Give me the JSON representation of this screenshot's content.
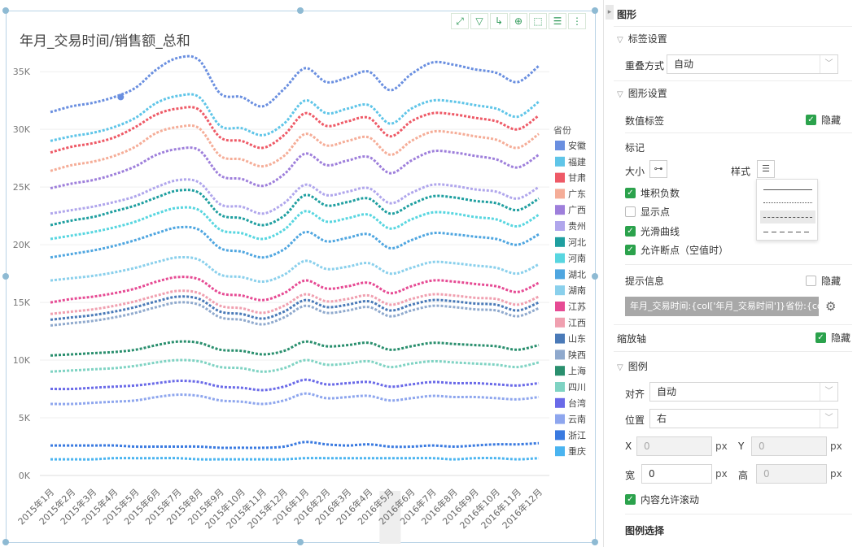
{
  "chart_data": {
    "type": "line",
    "title": "年月_交易时间/销售额_总和",
    "legend_title": "省份",
    "legend_placement": "right",
    "smooth": true,
    "line_style": "dashed",
    "categories": [
      "2015年1月",
      "2015年2月",
      "2015年3月",
      "2015年4月",
      "2015年5月",
      "2015年6月",
      "2015年7月",
      "2015年8月",
      "2015年9月",
      "2015年10月",
      "2015年11月",
      "2015年12月",
      "2016年1月",
      "2016年2月",
      "2016年3月",
      "2016年4月",
      "2016年5月",
      "2016年6月",
      "2016年7月",
      "2016年8月",
      "2016年9月",
      "2016年10月",
      "2016年11月",
      "2016年12月"
    ],
    "ylim": [
      0,
      36000
    ],
    "yticks": [
      "0K",
      "5K",
      "10K",
      "15K",
      "20K",
      "25K",
      "30K",
      "35K"
    ],
    "grid": true,
    "series": [
      {
        "name": "安徽",
        "color": "#6a8fe0",
        "values": [
          31500,
          32000,
          32300,
          32800,
          33600,
          35200,
          36200,
          36000,
          33100,
          32800,
          32000,
          33500,
          35300,
          34100,
          34500,
          35000,
          33400,
          34800,
          35800,
          35600,
          35200,
          34900,
          34100,
          35500
        ]
      },
      {
        "name": "福建",
        "color": "#5fc5e8",
        "values": [
          29000,
          29400,
          29700,
          30200,
          31000,
          32300,
          32900,
          32800,
          30300,
          30100,
          29500,
          30500,
          32500,
          31400,
          31800,
          32100,
          30500,
          31800,
          32500,
          32400,
          32100,
          31800,
          31100,
          32400
        ]
      },
      {
        "name": "甘肃",
        "color": "#ee5a67",
        "values": [
          28000,
          28500,
          28800,
          29300,
          30200,
          31300,
          31800,
          31700,
          29300,
          29000,
          28400,
          29500,
          31400,
          30300,
          30700,
          31000,
          29400,
          30700,
          31400,
          31300,
          31000,
          30700,
          30000,
          31200
        ]
      },
      {
        "name": "广东",
        "color": "#f5ad98",
        "values": [
          26400,
          26900,
          27200,
          27700,
          28500,
          29700,
          30200,
          30100,
          27700,
          27400,
          26800,
          27700,
          29600,
          28600,
          29000,
          29300,
          27800,
          29000,
          29800,
          29700,
          29400,
          29100,
          28400,
          29600
        ]
      },
      {
        "name": "广西",
        "color": "#9e7fdb",
        "values": [
          24900,
          25300,
          25600,
          26100,
          26800,
          27800,
          28300,
          28200,
          26000,
          25700,
          25100,
          26100,
          27900,
          26900,
          27300,
          27600,
          26200,
          27300,
          28100,
          28000,
          27700,
          27400,
          26700,
          27800
        ]
      },
      {
        "name": "贵州",
        "color": "#b0a6ec",
        "values": [
          22700,
          23000,
          23300,
          23700,
          24200,
          25000,
          25600,
          25400,
          23500,
          23300,
          22700,
          23600,
          25200,
          24300,
          24600,
          24900,
          23600,
          24500,
          25200,
          25100,
          24800,
          24600,
          24000,
          25000
        ]
      },
      {
        "name": "河北",
        "color": "#1f9fa0",
        "values": [
          21700,
          22100,
          22400,
          22900,
          23400,
          24100,
          24700,
          24500,
          22600,
          22300,
          21700,
          22500,
          24300,
          23400,
          23700,
          24000,
          22700,
          23500,
          24200,
          24100,
          23800,
          23600,
          23000,
          24000
        ]
      },
      {
        "name": "河南",
        "color": "#58d6e0",
        "values": [
          20500,
          20800,
          21100,
          21500,
          22000,
          22700,
          23200,
          23000,
          21300,
          21000,
          20500,
          21300,
          22900,
          22000,
          22300,
          22600,
          21400,
          22200,
          22800,
          22700,
          22400,
          22200,
          21600,
          22600
        ]
      },
      {
        "name": "湖北",
        "color": "#4fa6e0",
        "values": [
          18900,
          19200,
          19500,
          19900,
          20400,
          21000,
          21500,
          21300,
          19700,
          19400,
          18900,
          19600,
          21100,
          20300,
          20600,
          20900,
          19700,
          20400,
          21000,
          20900,
          20700,
          20500,
          20000,
          20900
        ]
      },
      {
        "name": "湖南",
        "color": "#8ad0ec",
        "values": [
          16900,
          17100,
          17300,
          17600,
          18000,
          18500,
          18900,
          18700,
          17400,
          17200,
          16800,
          17400,
          18600,
          17900,
          18100,
          18400,
          17500,
          18000,
          18500,
          18400,
          18200,
          18000,
          17500,
          18300
        ]
      },
      {
        "name": "江苏",
        "color": "#e64b94",
        "values": [
          15000,
          15300,
          15500,
          15800,
          16200,
          16800,
          17200,
          17000,
          15800,
          15600,
          15200,
          15800,
          16900,
          16200,
          16400,
          16700,
          15800,
          16400,
          16900,
          16800,
          16600,
          16400,
          15900,
          16700
        ]
      },
      {
        "name": "江西",
        "color": "#f0a0b0",
        "values": [
          14000,
          14200,
          14400,
          14700,
          15100,
          15600,
          16000,
          15800,
          14700,
          14500,
          14100,
          14700,
          15700,
          15100,
          15300,
          15600,
          14800,
          15300,
          15700,
          15600,
          15400,
          15300,
          14800,
          15500
        ]
      },
      {
        "name": "山东",
        "color": "#4a7ab8",
        "values": [
          13500,
          13700,
          13900,
          14200,
          14600,
          15100,
          15500,
          15300,
          14200,
          14000,
          13600,
          14200,
          15200,
          14600,
          14800,
          15100,
          14300,
          14800,
          15200,
          15100,
          14900,
          14800,
          14300,
          15000
        ]
      },
      {
        "name": "陕西",
        "color": "#8fa9cd",
        "values": [
          13000,
          13200,
          13400,
          13700,
          14100,
          14600,
          15000,
          14800,
          13700,
          13500,
          13100,
          13700,
          14700,
          14100,
          14300,
          14600,
          13800,
          14300,
          14700,
          14600,
          14400,
          14300,
          13800,
          14500
        ]
      },
      {
        "name": "上海",
        "color": "#2a8f6e",
        "values": [
          10400,
          10500,
          10600,
          10700,
          10900,
          11300,
          11600,
          11500,
          10900,
          10800,
          10500,
          10800,
          11600,
          11200,
          11300,
          11500,
          10900,
          11200,
          11500,
          11400,
          11300,
          11200,
          10900,
          11300
        ]
      },
      {
        "name": "四川",
        "color": "#7fd3c3",
        "values": [
          9000,
          9100,
          9200,
          9300,
          9500,
          9800,
          10000,
          9900,
          9400,
          9300,
          9000,
          9300,
          10000,
          9600,
          9700,
          9900,
          9400,
          9700,
          9900,
          9800,
          9700,
          9600,
          9400,
          9800
        ]
      },
      {
        "name": "台湾",
        "color": "#6a6ae8",
        "values": [
          7500,
          7500,
          7600,
          7700,
          7800,
          8000,
          8200,
          8100,
          7700,
          7600,
          7400,
          7700,
          8300,
          7900,
          8000,
          8100,
          7700,
          7900,
          8100,
          8000,
          8000,
          7900,
          7800,
          8000
        ]
      },
      {
        "name": "云南",
        "color": "#8ea6ee",
        "values": [
          6200,
          6200,
          6300,
          6400,
          6500,
          6800,
          7000,
          6900,
          6500,
          6400,
          6200,
          6500,
          7100,
          6700,
          6800,
          6900,
          6500,
          6700,
          6900,
          6800,
          6800,
          6700,
          6600,
          6800
        ]
      },
      {
        "name": "浙江",
        "color": "#3a7ae0",
        "values": [
          2600,
          2600,
          2600,
          2600,
          2500,
          2500,
          2500,
          2500,
          2400,
          2400,
          2400,
          2500,
          2900,
          2700,
          2600,
          2700,
          2500,
          2500,
          2600,
          2500,
          2600,
          2700,
          2700,
          2800
        ]
      },
      {
        "name": "重庆",
        "color": "#4ab4f0",
        "values": [
          1400,
          1400,
          1400,
          1500,
          1500,
          1500,
          1500,
          1400,
          1400,
          1400,
          1400,
          1400,
          1500,
          1500,
          1500,
          1500,
          1500,
          1500,
          1500,
          1400,
          1500,
          1500,
          1400,
          1500
        ]
      }
    ]
  },
  "toolbar": {
    "icons": [
      "fullscreen-icon",
      "filter-icon",
      "drill-icon",
      "zoom-icon",
      "select-icon",
      "list-icon",
      "more-icon"
    ],
    "accent": "#2f9a58"
  },
  "panel": {
    "graph_header": "图形",
    "label_settings": "标签设置",
    "overlap_label": "重叠方式",
    "overlap_value": "自动",
    "graph_settings": "图形设置",
    "value_label": "数值标签",
    "hide": "隐藏",
    "marker": "标记",
    "size": "大小",
    "style": "样式",
    "stack_negative": "堆积负数",
    "show_points": "显示点",
    "smooth_curve": "光滑曲线",
    "allow_break": "允许断点（空值时）",
    "tooltip": "提示信息",
    "tooltip_value": "年月_交易时间:{col['年月_交易时间']}省份:{col['...",
    "zoom_axis": "缩放轴",
    "legend": "图例",
    "align": "对齐",
    "align_value": "自动",
    "position": "位置",
    "position_value": "右",
    "x": "X",
    "y": "Y",
    "x_value": "0",
    "y_value": "0",
    "px": "px",
    "width": "宽",
    "height": "高",
    "width_value": "0",
    "height_value": "0",
    "content_scroll": "内容允许滚动",
    "legend_select": "图例选择",
    "check_color": "#2ba24c"
  }
}
